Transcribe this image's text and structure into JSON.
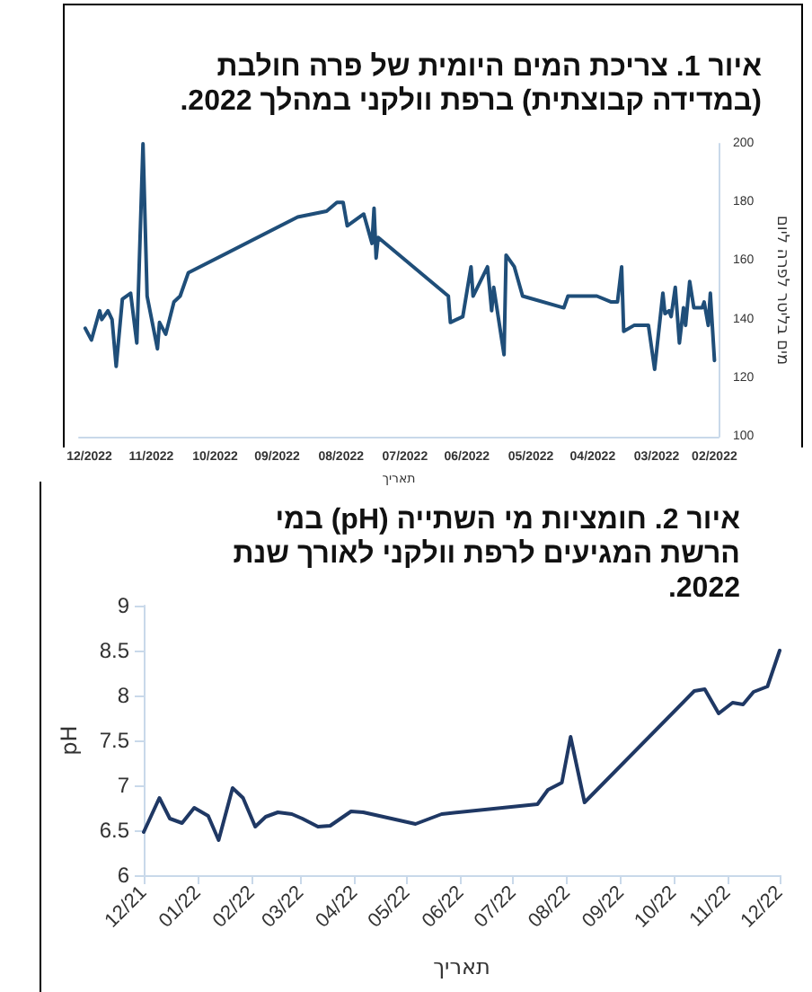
{
  "chart_data": [
    {
      "type": "line",
      "title": "איור 1. צריכת המים היומית של פרה חולבת (במדידה קבוצתית) ברפת וולקני במהלך 2022.",
      "xlabel": "תאריך",
      "ylabel": "מים בליטר לפרה ליום",
      "xlim": [
        "2022-12-06",
        "2022-01-30"
      ],
      "xticks": [
        {
          "value": "2022-12-01",
          "label": "12/2022"
        },
        {
          "value": "2022-11-01",
          "label": "11/2022"
        },
        {
          "value": "2022-10-01",
          "label": "10/2022"
        },
        {
          "value": "2022-09-01",
          "label": "09/2022"
        },
        {
          "value": "2022-08-01",
          "label": "08/2022"
        },
        {
          "value": "2022-07-01",
          "label": "07/2022"
        },
        {
          "value": "2022-06-01",
          "label": "06/2022"
        },
        {
          "value": "2022-05-01",
          "label": "05/2022"
        },
        {
          "value": "2022-04-01",
          "label": "04/2022"
        },
        {
          "value": "2022-03-01",
          "label": "03/2022"
        },
        {
          "value": "2022-02-01",
          "label": "02/2022"
        }
      ],
      "ylim": [
        100,
        200
      ],
      "yticks": [
        100,
        120,
        140,
        160,
        180,
        200
      ],
      "marker": "none",
      "x": [
        "2022-12-03",
        "2022-11-30",
        "2022-11-26",
        "2022-11-25",
        "2022-11-22",
        "2022-11-20",
        "2022-11-18",
        "2022-11-15",
        "2022-11-11",
        "2022-11-08",
        "2022-11-05",
        "2022-11-03",
        "2022-10-29",
        "2022-10-28",
        "2022-10-25",
        "2022-10-21",
        "2022-10-18",
        "2022-10-14",
        "2022-08-22",
        "2022-08-08",
        "2022-08-03",
        "2022-07-31",
        "2022-07-29",
        "2022-07-21",
        "2022-07-17",
        "2022-07-16",
        "2022-07-15",
        "2022-07-14",
        "2022-06-10",
        "2022-06-09",
        "2022-06-03",
        "2022-05-30",
        "2022-05-29",
        "2022-05-22",
        "2022-05-20",
        "2022-05-19",
        "2022-05-14",
        "2022-05-13",
        "2022-05-09",
        "2022-05-05",
        "2022-04-15",
        "2022-04-13",
        "2022-03-30",
        "2022-03-23",
        "2022-03-20",
        "2022-03-18",
        "2022-03-17",
        "2022-03-12",
        "2022-03-05",
        "2022-03-04",
        "2022-03-02",
        "2022-02-26",
        "2022-02-25",
        "2022-02-23",
        "2022-02-22",
        "2022-02-20",
        "2022-02-18",
        "2022-02-16",
        "2022-02-15",
        "2022-02-13",
        "2022-02-11",
        "2022-02-07",
        "2022-02-06",
        "2022-02-04",
        "2022-02-03",
        "2022-02-01"
      ],
      "series": [
        {
          "color": "#1f4e79",
          "values": [
            137,
            133,
            143,
            140,
            143,
            140,
            124,
            147,
            149,
            132,
            200,
            148,
            130,
            139,
            135,
            146,
            148,
            156,
            175,
            177,
            180,
            180,
            172,
            176,
            166,
            178,
            161,
            168,
            148,
            139,
            141,
            158,
            148,
            158,
            143,
            151,
            128,
            162,
            158,
            148,
            144,
            148,
            148,
            146,
            146,
            158,
            136,
            138,
            138,
            133,
            123,
            149,
            142,
            143,
            141,
            151,
            132,
            144,
            138,
            153,
            144,
            144,
            146,
            138,
            149,
            126
          ]
        }
      ]
    },
    {
      "type": "line",
      "title": "איור 2. חומציות מי השתייה (pH) במי הרשת המגיעים לרפת וולקני לאורך שנת 2022.",
      "xlabel": "תאריך",
      "ylabel": "pH",
      "xlim": [
        "2021-12-01",
        "2022-12-01"
      ],
      "xticks": [
        {
          "value": "2021-12-01",
          "label": "12/21"
        },
        {
          "value": "2022-01-01",
          "label": "01/22"
        },
        {
          "value": "2022-02-01",
          "label": "02/22"
        },
        {
          "value": "2022-03-01",
          "label": "03/22"
        },
        {
          "value": "2022-04-01",
          "label": "04/22"
        },
        {
          "value": "2022-05-01",
          "label": "05/22"
        },
        {
          "value": "2022-06-01",
          "label": "06/22"
        },
        {
          "value": "2022-07-01",
          "label": "07/22"
        },
        {
          "value": "2022-08-01",
          "label": "08/22"
        },
        {
          "value": "2022-09-01",
          "label": "09/22"
        },
        {
          "value": "2022-10-01",
          "label": "10/22"
        },
        {
          "value": "2022-11-01",
          "label": "11/22"
        },
        {
          "value": "2022-12-01",
          "label": "12/22"
        }
      ],
      "ylim": [
        6,
        9
      ],
      "yticks": [
        6,
        6.5,
        7,
        7.5,
        8,
        8.5,
        9
      ],
      "marker": "none",
      "x": [
        "2021-12-01",
        "2021-12-10",
        "2021-12-16",
        "2021-12-23",
        "2021-12-30",
        "2022-01-07",
        "2022-01-13",
        "2022-01-21",
        "2022-01-27",
        "2022-02-03",
        "2022-02-09",
        "2022-02-16",
        "2022-02-24",
        "2022-03-02",
        "2022-03-11",
        "2022-03-18",
        "2022-03-30",
        "2022-04-06",
        "2022-05-06",
        "2022-05-21",
        "2022-07-15",
        "2022-07-21",
        "2022-07-29",
        "2022-08-03",
        "2022-08-11",
        "2022-10-13",
        "2022-10-19",
        "2022-10-27",
        "2022-11-04",
        "2022-11-10",
        "2022-11-16",
        "2022-11-24",
        "2022-12-01"
      ],
      "series": [
        {
          "color": "#1f3864",
          "values": [
            6.48,
            6.86,
            6.63,
            6.58,
            6.75,
            6.66,
            6.39,
            6.97,
            6.86,
            6.54,
            6.65,
            6.7,
            6.68,
            6.63,
            6.54,
            6.55,
            6.71,
            6.7,
            6.57,
            6.68,
            6.79,
            6.95,
            7.03,
            7.54,
            6.81,
            8.05,
            8.07,
            7.8,
            7.92,
            7.9,
            8.04,
            8.1,
            8.5
          ]
        }
      ]
    }
  ]
}
